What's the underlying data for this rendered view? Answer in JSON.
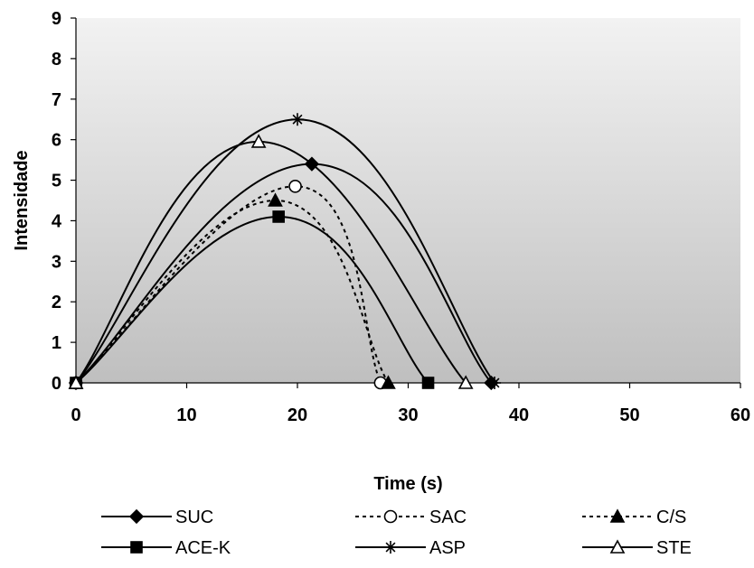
{
  "chart_data": {
    "type": "line",
    "title": "",
    "xlabel": "Time (s)",
    "ylabel": "Intensidade",
    "xlim": [
      0,
      60
    ],
    "ylim": [
      0,
      9
    ],
    "x_ticks": [
      0,
      10,
      20,
      30,
      40,
      50,
      60
    ],
    "y_ticks": [
      0,
      1,
      2,
      3,
      4,
      5,
      6,
      7,
      8,
      9
    ],
    "grid": false,
    "legend_position": "bottom",
    "plot_background": [
      "#f2f2f2",
      "#bfbfbf"
    ],
    "series": [
      {
        "name": "SUC",
        "marker": "diamond-filled",
        "line_style": "solid",
        "points": [
          [
            0,
            0
          ],
          [
            21.3,
            5.4
          ],
          [
            37.5,
            0
          ]
        ]
      },
      {
        "name": "SAC",
        "marker": "circle-open",
        "line_style": "dashed",
        "points": [
          [
            0,
            0
          ],
          [
            19.8,
            4.85
          ],
          [
            27.5,
            0
          ]
        ]
      },
      {
        "name": "C/S",
        "marker": "triangle-filled",
        "line_style": "dashed",
        "points": [
          [
            0,
            0
          ],
          [
            18.0,
            4.5
          ],
          [
            28.2,
            0
          ]
        ]
      },
      {
        "name": "ACE-K",
        "marker": "square-filled",
        "line_style": "solid",
        "points": [
          [
            0,
            0
          ],
          [
            18.3,
            4.1
          ],
          [
            31.8,
            0
          ]
        ]
      },
      {
        "name": "ASP",
        "marker": "asterisk",
        "line_style": "solid",
        "points": [
          [
            0,
            0
          ],
          [
            20.0,
            6.5
          ],
          [
            37.8,
            0
          ]
        ]
      },
      {
        "name": "STE",
        "marker": "triangle-open",
        "line_style": "solid",
        "points": [
          [
            0,
            0
          ],
          [
            16.5,
            5.95
          ],
          [
            35.2,
            0
          ]
        ]
      }
    ]
  }
}
